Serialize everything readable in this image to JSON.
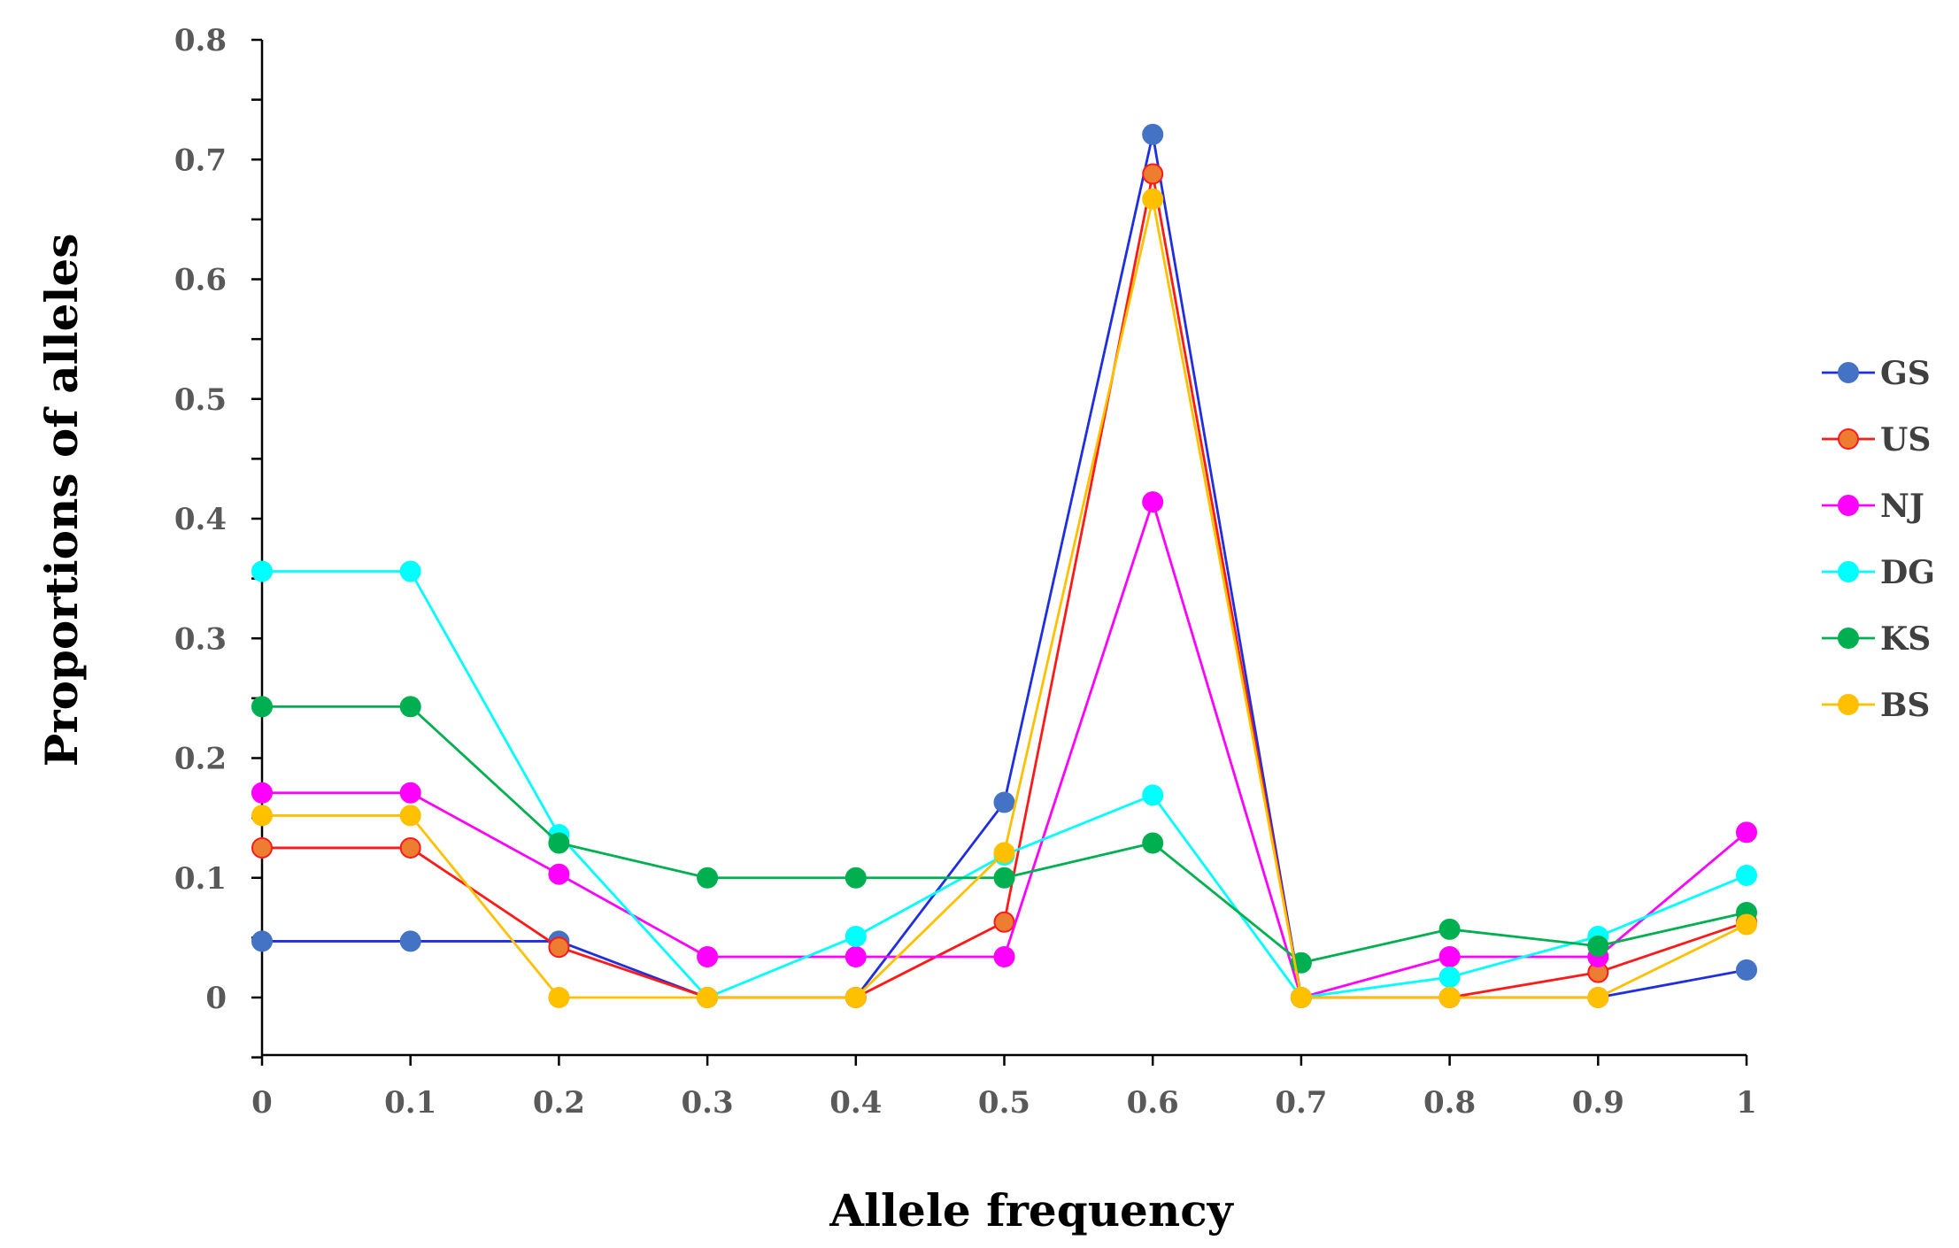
{
  "chart_data": {
    "type": "line",
    "title": "",
    "xlabel": "Allele frequency",
    "ylabel": "Proportions of alleles",
    "x": [
      0,
      0.1,
      0.2,
      0.3,
      0.4,
      0.5,
      0.6,
      0.7,
      0.8,
      0.9,
      1
    ],
    "x_tick_labels": [
      "0",
      "0.1",
      "0.2",
      "0.3",
      "0.4",
      "0.5",
      "0.6",
      "0.7",
      "0.8",
      "0.9",
      "1"
    ],
    "y_tick_labels": [
      "0",
      "0.1",
      "0.2",
      "0.3",
      "0.4",
      "0.5",
      "0.6",
      "0.7",
      "0.8"
    ],
    "xlim": [
      0,
      1
    ],
    "ylim": [
      -0.05,
      0.8
    ],
    "grid": false,
    "legend_position": "right",
    "series": [
      {
        "name": "GS",
        "color": "#1f2ee0",
        "marker_color": "#4472c4",
        "marker_edge": "#4472c4",
        "values": [
          0.047,
          0.047,
          0.047,
          0.0,
          0.0,
          0.163,
          0.721,
          0.0,
          0.0,
          0.0,
          0.023
        ]
      },
      {
        "name": "US",
        "color": "#ff1a1a",
        "marker_color": "#ed7d31",
        "marker_edge": "#ff1a1a",
        "values": [
          0.125,
          0.125,
          0.042,
          0.0,
          0.0,
          0.063,
          0.688,
          0.0,
          0.0,
          0.021,
          0.063
        ]
      },
      {
        "name": "NJ",
        "color": "#ff00ff",
        "marker_color": "#ff00ff",
        "marker_edge": "#ff00ff",
        "values": [
          0.171,
          0.171,
          0.103,
          0.034,
          0.034,
          0.034,
          0.414,
          0.0,
          0.034,
          0.034,
          0.138
        ]
      },
      {
        "name": "DG",
        "color": "#00ffff",
        "marker_color": "#00ffff",
        "marker_edge": "#00ffff",
        "values": [
          0.356,
          0.356,
          0.136,
          0.0,
          0.051,
          0.119,
          0.169,
          0.0,
          0.017,
          0.051,
          0.102
        ]
      },
      {
        "name": "KS",
        "color": "#00b050",
        "marker_color": "#00b050",
        "marker_edge": "#00b050",
        "values": [
          0.243,
          0.243,
          0.129,
          0.1,
          0.1,
          0.1,
          0.129,
          0.029,
          0.057,
          0.043,
          0.071
        ]
      },
      {
        "name": "BS",
        "color": "#ffc000",
        "marker_color": "#ffc000",
        "marker_edge": "#ffc000",
        "values": [
          0.152,
          0.152,
          0.0,
          0.0,
          0.0,
          0.121,
          0.667,
          0.0,
          0.0,
          0.0,
          0.061
        ]
      }
    ]
  }
}
